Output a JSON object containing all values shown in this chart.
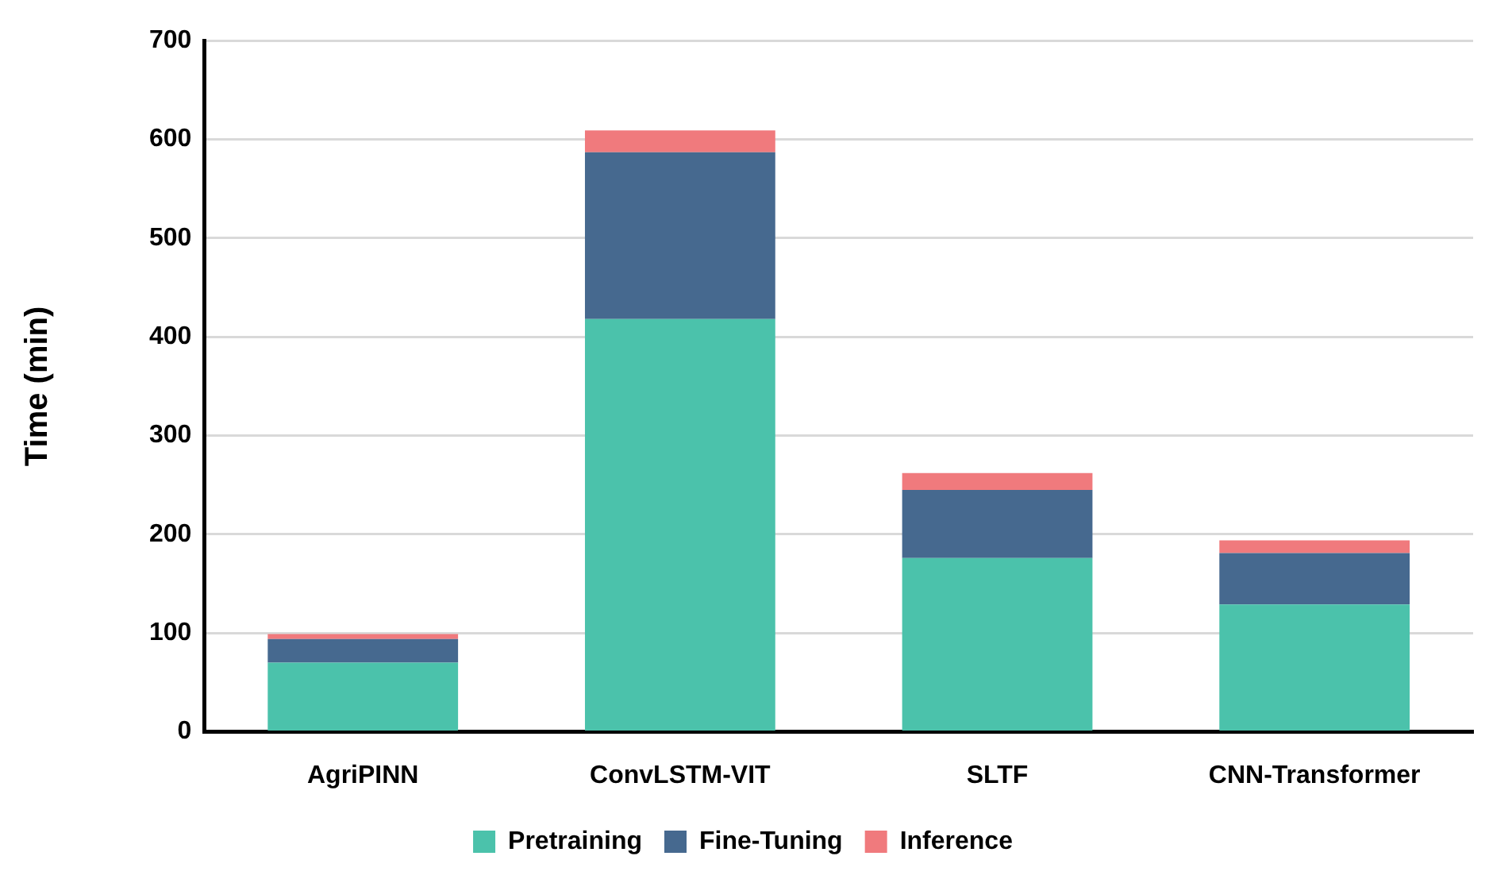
{
  "chart_data": {
    "type": "bar",
    "stacked": true,
    "ylabel": "Time (min)",
    "categories": [
      "AgriPINN",
      "ConvLSTM-VIT",
      "SLTF",
      "CNN-Transformer"
    ],
    "series": [
      {
        "name": "Pretraining",
        "color": "#4bc2ab",
        "values": [
          70,
          418,
          176,
          129
        ]
      },
      {
        "name": "Fine-Tuning",
        "color": "#46698f",
        "values": [
          24,
          169,
          69,
          52
        ]
      },
      {
        "name": "Inference",
        "color": "#f07a7d",
        "values": [
          5,
          22,
          17,
          13
        ]
      }
    ],
    "ylim": [
      0,
      700
    ],
    "yticks": [
      0,
      100,
      200,
      300,
      400,
      500,
      600,
      700
    ],
    "grid": "y",
    "legend": "bottom"
  }
}
